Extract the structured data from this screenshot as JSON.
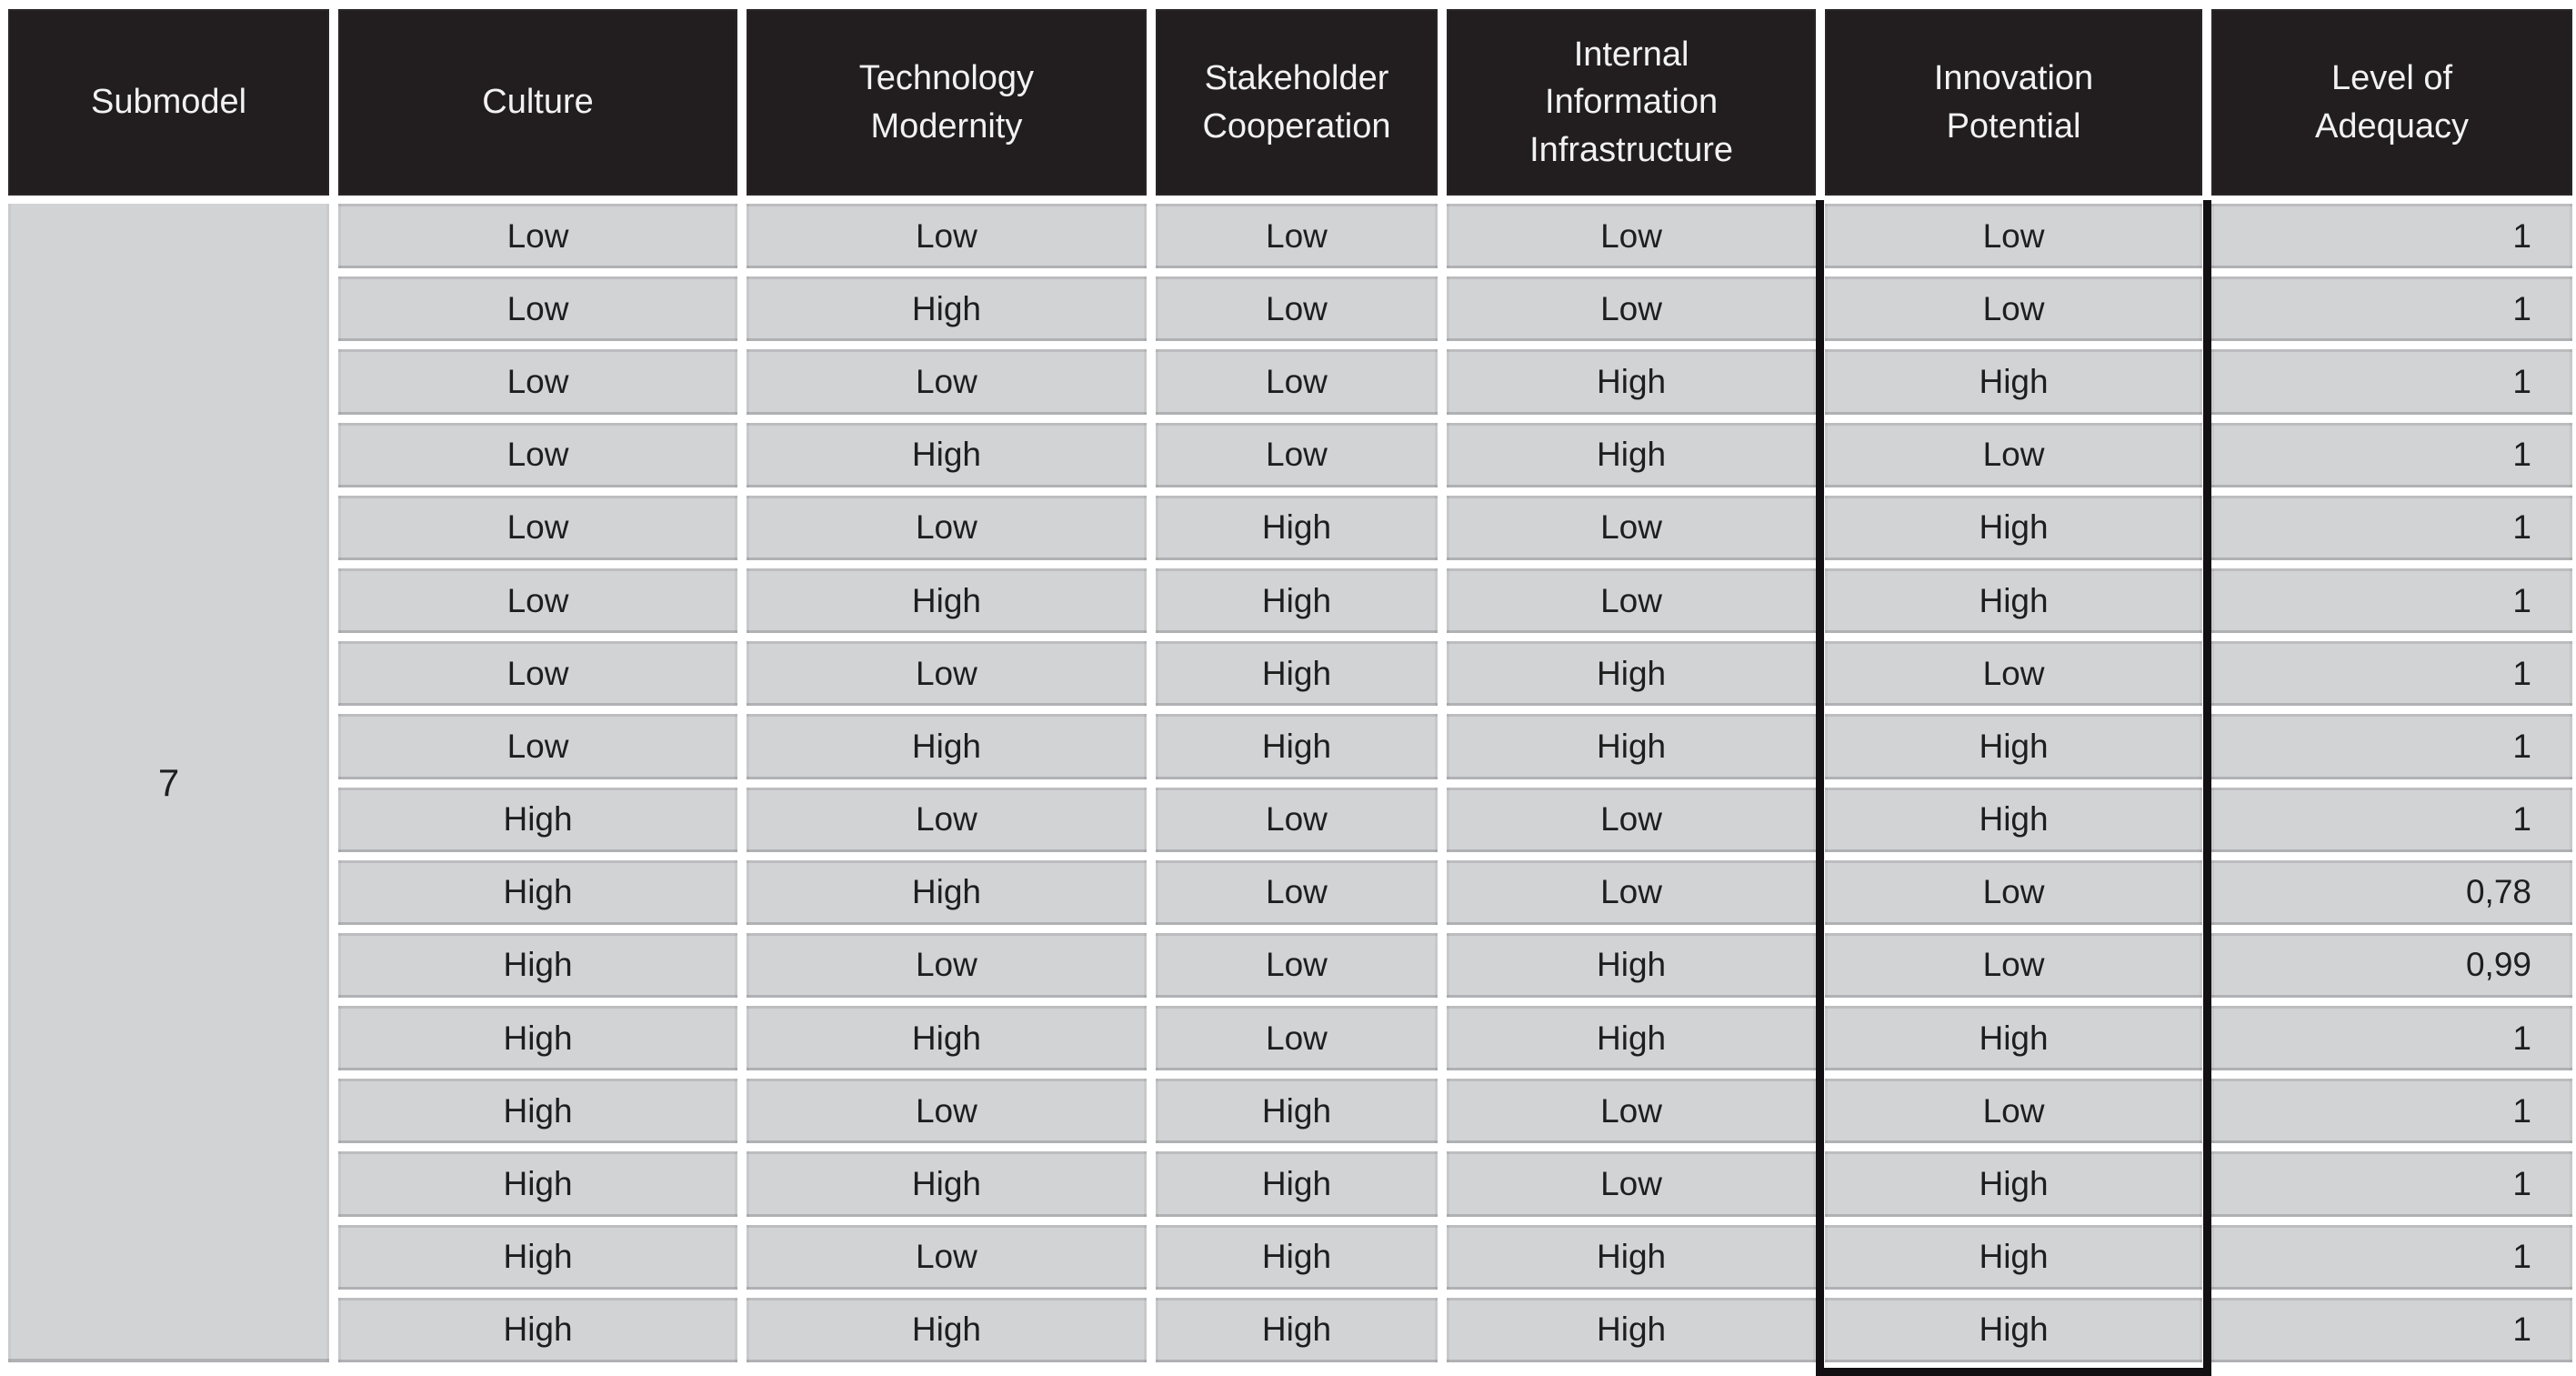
{
  "table": {
    "columns": [
      {
        "key": "submodel",
        "label": "Submodel"
      },
      {
        "key": "culture",
        "label": "Culture"
      },
      {
        "key": "technology_modernity",
        "label": "Technology Modernity"
      },
      {
        "key": "stakeholder_cooperation",
        "label": "Stakeholder Cooperation"
      },
      {
        "key": "internal_information_infrastructure",
        "label": "Internal Information Infrastructure"
      },
      {
        "key": "innovation_potential",
        "label": "Innovation Potential"
      },
      {
        "key": "level_of_adequacy",
        "label": "Level of Adequacy"
      }
    ],
    "submodel_value": "7",
    "highlighted_column": "Innovation Potential",
    "rows": [
      {
        "cells": [
          "Low",
          "Low",
          "Low",
          "Low",
          "Low",
          "1"
        ]
      },
      {
        "cells": [
          "Low",
          "High",
          "Low",
          "Low",
          "Low",
          "1"
        ]
      },
      {
        "cells": [
          "Low",
          "Low",
          "Low",
          "High",
          "High",
          "1"
        ]
      },
      {
        "cells": [
          "Low",
          "High",
          "Low",
          "High",
          "Low",
          "1"
        ]
      },
      {
        "cells": [
          "Low",
          "Low",
          "High",
          "Low",
          "High",
          "1"
        ]
      },
      {
        "cells": [
          "Low",
          "High",
          "High",
          "Low",
          "High",
          "1"
        ]
      },
      {
        "cells": [
          "Low",
          "Low",
          "High",
          "High",
          "Low",
          "1"
        ]
      },
      {
        "cells": [
          "Low",
          "High",
          "High",
          "High",
          "High",
          "1"
        ]
      },
      {
        "cells": [
          "High",
          "Low",
          "Low",
          "Low",
          "High",
          "1"
        ]
      },
      {
        "cells": [
          "High",
          "High",
          "Low",
          "Low",
          "Low",
          "0,78"
        ]
      },
      {
        "cells": [
          "High",
          "Low",
          "Low",
          "High",
          "Low",
          "0,99"
        ]
      },
      {
        "cells": [
          "High",
          "High",
          "Low",
          "High",
          "High",
          "1"
        ]
      },
      {
        "cells": [
          "High",
          "Low",
          "High",
          "Low",
          "Low",
          "1"
        ]
      },
      {
        "cells": [
          "High",
          "High",
          "High",
          "Low",
          "High",
          "1"
        ]
      },
      {
        "cells": [
          "High",
          "Low",
          "High",
          "High",
          "High",
          "1"
        ]
      },
      {
        "cells": [
          "High",
          "High",
          "High",
          "High",
          "High",
          "1"
        ]
      }
    ]
  },
  "chart_data": {
    "type": "table",
    "title": "",
    "columns": [
      "Submodel",
      "Culture",
      "Technology Modernity",
      "Stakeholder Cooperation",
      "Internal Information Infrastructure",
      "Innovation Potential",
      "Level of Adequacy"
    ],
    "submodel": "7",
    "rows": [
      [
        "Low",
        "Low",
        "Low",
        "Low",
        "Low",
        "1"
      ],
      [
        "Low",
        "High",
        "Low",
        "Low",
        "Low",
        "1"
      ],
      [
        "Low",
        "Low",
        "Low",
        "High",
        "High",
        "1"
      ],
      [
        "Low",
        "High",
        "Low",
        "High",
        "Low",
        "1"
      ],
      [
        "Low",
        "Low",
        "High",
        "Low",
        "High",
        "1"
      ],
      [
        "Low",
        "High",
        "High",
        "Low",
        "High",
        "1"
      ],
      [
        "Low",
        "Low",
        "High",
        "High",
        "Low",
        "1"
      ],
      [
        "Low",
        "High",
        "High",
        "High",
        "High",
        "1"
      ],
      [
        "High",
        "Low",
        "Low",
        "Low",
        "High",
        "1"
      ],
      [
        "High",
        "High",
        "Low",
        "Low",
        "Low",
        "0,78"
      ],
      [
        "High",
        "Low",
        "Low",
        "High",
        "Low",
        "0,99"
      ],
      [
        "High",
        "High",
        "Low",
        "High",
        "High",
        "1"
      ],
      [
        "High",
        "Low",
        "High",
        "Low",
        "Low",
        "1"
      ],
      [
        "High",
        "High",
        "High",
        "Low",
        "High",
        "1"
      ],
      [
        "High",
        "Low",
        "High",
        "High",
        "High",
        "1"
      ],
      [
        "High",
        "High",
        "High",
        "High",
        "High",
        "1"
      ]
    ]
  },
  "colors": {
    "header_bg": "#221e1f",
    "header_text": "#f2f2f3",
    "cell_bg": "#d2d3d5",
    "cell_text": "#1e1e1e",
    "gap": "#ffffff",
    "highlight_border": "#131013"
  }
}
